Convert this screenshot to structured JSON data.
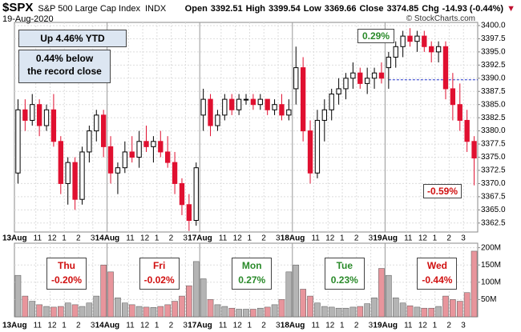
{
  "chart_data": {
    "type": "candlestick",
    "symbol": "$SPX",
    "name": "S&P 500 Large Cap Index",
    "exchange": "INDX",
    "date": "19-Aug-2020",
    "header": {
      "open_label": "Open",
      "open": 3392.51,
      "high_label": "High",
      "high": 3399.54,
      "low_label": "Low",
      "low": 3369.66,
      "close_label": "Close",
      "close": 3374.85,
      "chg_label": "Chg",
      "chg": "-14.93 (-0.44%)",
      "arrow": "▼"
    },
    "credit": "© StockCharts.com",
    "boxes": {
      "ytd": "Up 4.46% YTD",
      "record": [
        "0.44% below",
        "the record close"
      ]
    },
    "callouts": {
      "high": "0.29%",
      "low": "-0.59%"
    },
    "days": [
      {
        "name": "Thu",
        "change": "-0.20%",
        "color": "#d01010"
      },
      {
        "name": "Fri",
        "change": "-0.02%",
        "color": "#d01010"
      },
      {
        "name": "Mon",
        "change": "0.27%",
        "color": "#2a8a2a"
      },
      {
        "name": "Tue",
        "change": "0.23%",
        "color": "#2a8a2a"
      },
      {
        "name": "Wed",
        "change": "-0.44%",
        "color": "#d01010"
      }
    ],
    "categories": [
      "13Aug",
      null,
      null,
      "11",
      null,
      "12",
      null,
      "1",
      null,
      "2",
      null,
      "3",
      null,
      "14Aug",
      null,
      null,
      "11",
      null,
      "12",
      null,
      "1",
      null,
      "2",
      null,
      "3",
      null,
      "17Aug",
      null,
      null,
      "11",
      null,
      "12",
      null,
      "1",
      null,
      "2",
      null,
      "3",
      null,
      "18Aug",
      null,
      null,
      "11",
      null,
      "12",
      null,
      "1",
      null,
      "2",
      null,
      "3",
      null,
      "19Aug",
      null,
      null,
      "11",
      null,
      "12",
      null,
      "1",
      null,
      "2",
      null,
      "3",
      null
    ],
    "open": [
      3372,
      3384,
      3382,
      3385,
      3381,
      3384,
      3378,
      3370,
      3374,
      3367,
      3376,
      3380,
      3383,
      3377,
      3372,
      3373,
      3376,
      3375,
      3378,
      3377,
      3378,
      3376,
      3374,
      3370,
      3366,
      3363,
      3383,
      3386,
      3381,
      3383,
      3386,
      3384,
      3386,
      3386,
      3385,
      3386,
      3384,
      3385,
      3383,
      3388,
      3392,
      3380,
      3372,
      3382,
      3384,
      3387,
      3388,
      3390,
      3391,
      3389,
      3390,
      3391,
      3392,
      3394,
      3396,
      3398,
      3397,
      3398,
      3396,
      3395,
      3396,
      3388,
      3385,
      3382,
      3378
    ],
    "high": [
      3386,
      3386,
      3387,
      3386,
      3385,
      3387,
      3379,
      3375,
      3375,
      3377,
      3381,
      3384,
      3384,
      3379,
      3374,
      3378,
      3379,
      3380,
      3381,
      3379,
      3380,
      3379,
      3376,
      3371,
      3368,
      3374,
      3388,
      3387,
      3384,
      3387,
      3387,
      3387,
      3387,
      3387,
      3387,
      3386,
      3386,
      3387,
      3386,
      3396,
      3394,
      3382,
      3384,
      3386,
      3388,
      3390,
      3391,
      3393,
      3392,
      3392,
      3392,
      3393,
      3395,
      3397,
      3399,
      3399.5,
      3399,
      3399,
      3397,
      3397,
      3397,
      3391,
      3389,
      3384,
      3379
    ],
    "low": [
      3370,
      3380,
      3381,
      3379,
      3380,
      3377,
      3368,
      3366,
      3365,
      3366,
      3374,
      3378,
      3375,
      3370,
      3368,
      3372,
      3374,
      3373,
      3376,
      3374,
      3375,
      3373,
      3368,
      3364,
      3361,
      3362,
      3380,
      3379,
      3380,
      3382,
      3383,
      3383,
      3385,
      3384,
      3384,
      3383,
      3383,
      3382,
      3382,
      3385,
      3378,
      3370,
      3371,
      3378,
      3382,
      3385,
      3386,
      3388,
      3388,
      3387,
      3388,
      3389,
      3388,
      3392,
      3394,
      3396,
      3395,
      3395,
      3393,
      3393,
      3386,
      3382,
      3380,
      3376,
      3369.66
    ],
    "close": [
      3384,
      3382,
      3385,
      3381,
      3384,
      3378,
      3370,
      3374,
      3367,
      3376,
      3380,
      3383,
      3377,
      3372,
      3373,
      3376,
      3375,
      3378,
      3377,
      3378,
      3376,
      3374,
      3370,
      3366,
      3363,
      3373,
      3386,
      3381,
      3383,
      3386,
      3384,
      3386,
      3386,
      3385,
      3386,
      3384,
      3385,
      3383,
      3384,
      3392,
      3380,
      3372,
      3382,
      3384,
      3387,
      3388,
      3390,
      3391,
      3389,
      3390,
      3391,
      3390,
      3394,
      3396,
      3398,
      3397,
      3398,
      3396,
      3395,
      3396,
      3388,
      3385,
      3382,
      3378,
      3374.85
    ],
    "volume": [
      120,
      60,
      45,
      35,
      30,
      28,
      30,
      40,
      35,
      30,
      40,
      60,
      150,
      130,
      55,
      40,
      35,
      30,
      28,
      27,
      30,
      35,
      45,
      60,
      90,
      160,
      110,
      50,
      35,
      30,
      25,
      22,
      22,
      22,
      25,
      28,
      35,
      50,
      130,
      150,
      80,
      60,
      40,
      30,
      28,
      25,
      25,
      28,
      30,
      38,
      55,
      140,
      120,
      55,
      40,
      32,
      28,
      25,
      25,
      30,
      60,
      50,
      45,
      70,
      190
    ],
    "up_color": "#000000",
    "down_color": "#e01030",
    "volume_up_color": "#b4b4b4",
    "volume_down_color": "#e8959c",
    "reference_line": 3389.7,
    "reference_color": "#2233cc",
    "ylim": [
      3360.8,
      3400.6
    ],
    "yticks": [
      {
        "value": 3362.5,
        "label": "3362.5"
      },
      {
        "value": 3365,
        "label": "3365.0"
      },
      {
        "value": 3367.5,
        "label": "3367.5"
      },
      {
        "value": 3370,
        "label": "3370.0"
      },
      {
        "value": 3372.5,
        "label": "3372.5"
      },
      {
        "value": 3375,
        "label": "3375.0"
      },
      {
        "value": 3377.5,
        "label": "3377.5"
      },
      {
        "value": 3380,
        "label": "3380.0"
      },
      {
        "value": 3382.5,
        "label": "3382.5"
      },
      {
        "value": 3385,
        "label": "3385.0"
      },
      {
        "value": 3387.5,
        "label": "3387.5"
      },
      {
        "value": 3390,
        "label": "3390.0"
      },
      {
        "value": 3392.5,
        "label": "3392.5"
      },
      {
        "value": 3395,
        "label": "3395.0"
      },
      {
        "value": 3397.5,
        "label": "3397.5"
      },
      {
        "value": 3400,
        "label": "3400.0"
      }
    ],
    "y2lim": [
      0,
      213
    ],
    "y2ticks": [
      {
        "value": 50,
        "label": "50M"
      },
      {
        "value": 100,
        "label": "100M"
      },
      {
        "value": 150,
        "label": "150M"
      },
      {
        "value": 200,
        "label": "200M"
      }
    ],
    "grid": true
  }
}
